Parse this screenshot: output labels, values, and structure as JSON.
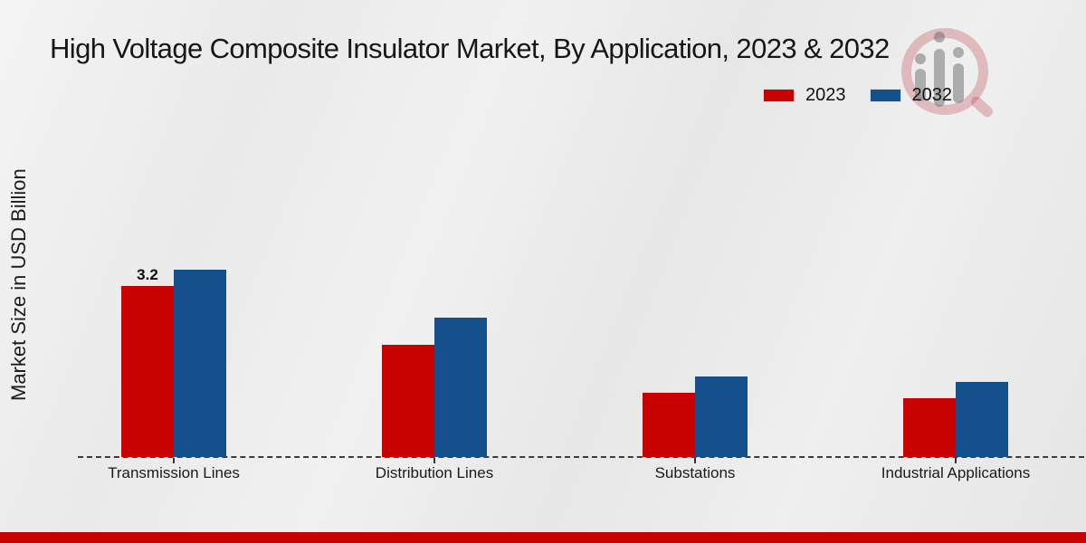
{
  "page": {
    "title": "High Voltage Composite Insulator Market, By Application, 2023 & 2032",
    "y_axis_label": "Market Size in USD Billion",
    "footer_band_color": "#c80101"
  },
  "chart_data": {
    "type": "bar",
    "title": "High Voltage Composite Insulator Market, By Application, 2023 & 2032",
    "xlabel": "",
    "ylabel": "Market Size in USD Billion",
    "categories": [
      "Transmission Lines",
      "Distribution Lines",
      "Substations",
      "Industrial Applications"
    ],
    "series": [
      {
        "name": "2023",
        "color": "#c80101",
        "values": [
          3.2,
          2.1,
          1.2,
          1.1
        ]
      },
      {
        "name": "2032",
        "color": "#14508c",
        "values": [
          3.5,
          2.6,
          1.5,
          1.4
        ]
      }
    ],
    "bar_labels": [
      {
        "category_index": 0,
        "series_index": 0,
        "text": "3.2"
      }
    ],
    "ylim": [
      0,
      6
    ],
    "grid": false,
    "y_axis_ticks_visible": false,
    "baseline_style": "dashed",
    "legend_position": "top-right"
  },
  "watermark": {
    "icon": "mrfr-logo-watermark"
  }
}
